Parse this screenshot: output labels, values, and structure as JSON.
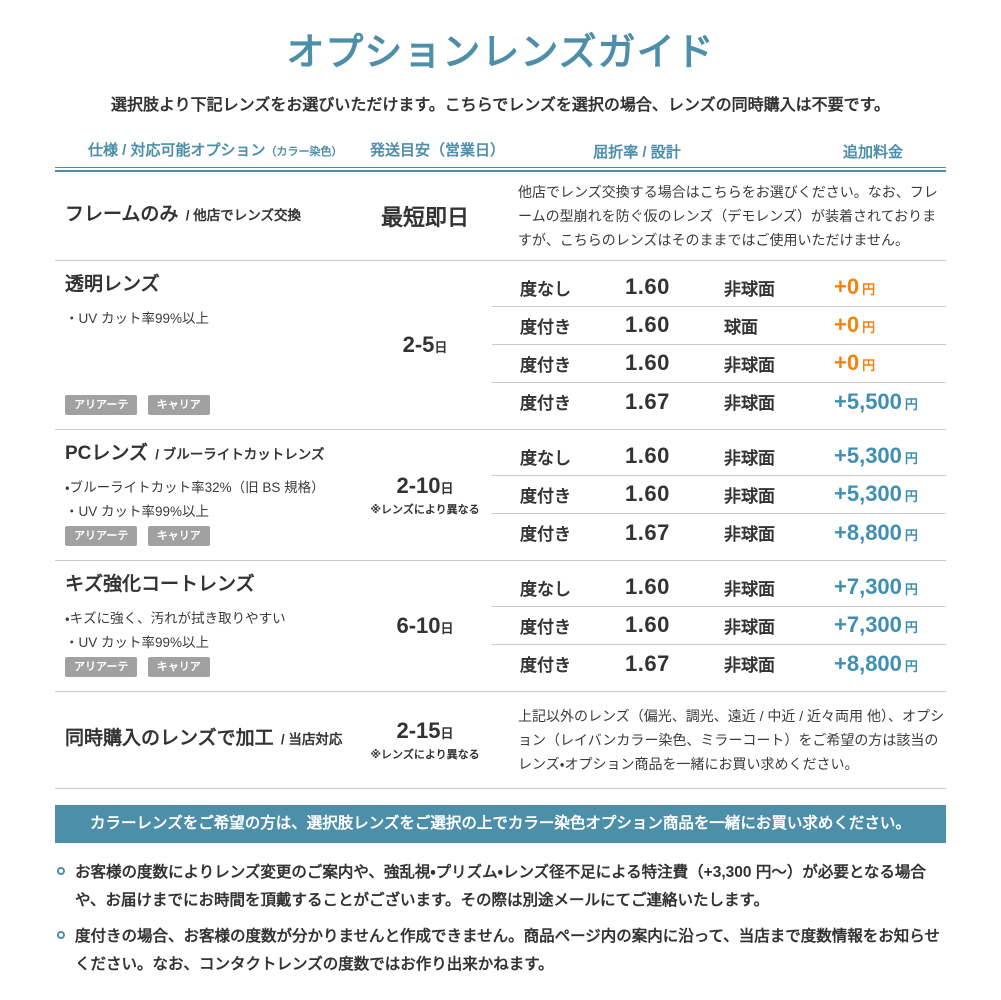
{
  "page": {
    "title": "オプションレンズガイド",
    "subtitle": "選択肢より下記レンズをお選びいただけます。こちらでレンズを選択の場合、レンズの同時購入は不要です。",
    "colors": {
      "teal": "#4d8fa9",
      "orange": "#f5820f",
      "price_blue": "#3f8fb2"
    }
  },
  "table": {
    "headers": {
      "spec": "仕様 / 対応可能オプション",
      "spec_small": "（カラー染色）",
      "shipping": "発送目安（営業日）",
      "refraction": "屈折率 / 設計",
      "price": "追加料金"
    },
    "rows": [
      {
        "name": "フレームのみ",
        "suffix": "/ 他店でレンズ交換",
        "shipping": "最短即日",
        "shipping_unit": "",
        "shipping_note": "",
        "description": "他店でレンズ交換する場合はこちらをお選びください。なお、フレームの型崩れを防ぐ仮のレンズ（デモレンズ）が装着されておりますが、こちらのレンズはそのままではご使用いただけません。"
      },
      {
        "name": "透明レンズ",
        "suffix": "",
        "bullets": [
          "・UV カット率99%以上"
        ],
        "tags": [
          "アリアーテ",
          "キャリア"
        ],
        "shipping": "2-5",
        "shipping_unit": "日",
        "shipping_note": "",
        "options": [
          {
            "power": "度なし",
            "index": "1.60",
            "design": "非球面",
            "price": "+0",
            "unit": "円"
          },
          {
            "power": "度付き",
            "index": "1.60",
            "design": "球面",
            "price": "+0",
            "unit": "円"
          },
          {
            "power": "度付き",
            "index": "1.60",
            "design": "非球面",
            "price": "+0",
            "unit": "円"
          },
          {
            "power": "度付き",
            "index": "1.67",
            "design": "非球面",
            "price": "+5,500",
            "unit": "円"
          }
        ]
      },
      {
        "name": "PCレンズ",
        "suffix": "/ ブルーライトカットレンズ",
        "bullets": [
          "・ブルーライトカット率32%（旧 BS 規格）",
          "・UV カット率99%以上"
        ],
        "tags": [
          "アリアーテ",
          "キャリア"
        ],
        "shipping": "2-10",
        "shipping_unit": "日",
        "shipping_note": "※レンズにより異なる",
        "options": [
          {
            "power": "度なし",
            "index": "1.60",
            "design": "非球面",
            "price": "+5,300",
            "unit": "円"
          },
          {
            "power": "度付き",
            "index": "1.60",
            "design": "非球面",
            "price": "+5,300",
            "unit": "円"
          },
          {
            "power": "度付き",
            "index": "1.67",
            "design": "非球面",
            "price": "+8,800",
            "unit": "円"
          }
        ]
      },
      {
        "name": "キズ強化コートレンズ",
        "suffix": "",
        "bullets": [
          "・キズに強く、汚れが拭き取りやすい",
          "・UV カット率99%以上"
        ],
        "tags": [
          "アリアーテ",
          "キャリア"
        ],
        "shipping": "6-10",
        "shipping_unit": "日",
        "shipping_note": "",
        "options": [
          {
            "power": "度なし",
            "index": "1.60",
            "design": "非球面",
            "price": "+7,300",
            "unit": "円"
          },
          {
            "power": "度付き",
            "index": "1.60",
            "design": "非球面",
            "price": "+7,300",
            "unit": "円"
          },
          {
            "power": "度付き",
            "index": "1.67",
            "design": "非球面",
            "price": "+8,800",
            "unit": "円"
          }
        ]
      },
      {
        "name": "同時購入のレンズで加工",
        "suffix": "/ 当店対応",
        "shipping": "2-15",
        "shipping_unit": "日",
        "shipping_note": "※レンズにより異なる",
        "description": "上記以外のレンズ（偏光、調光、遠近 / 中近 / 近々両用 他）、オプション（レイバンカラー染色、ミラーコート）をご希望の方は該当のレンズ・オプション商品を一緒にお買い求めください。"
      }
    ]
  },
  "banner": {
    "text": "カラーレンズをご希望の方は、選択肢レンズをご選択の上でカラー染色オプション商品を一緒にお買い求めください。"
  },
  "notes": [
    "お客様の度数によりレンズ変更のご案内や、強乱視・プリズム・レンズ径不足による特注費（+3,300 円～）が必要となる場合や、お届けまでにお時間を頂戴することがございます。その際は別途メールにてご連絡いたします。",
    "度付きの場合、お客様の度数が分かりませんと作成できません。商品ページ内の案内に沿って、当店まで度数情報をお知らせください。なお、コンタクトレンズの度数ではお作り出来かねます。"
  ]
}
